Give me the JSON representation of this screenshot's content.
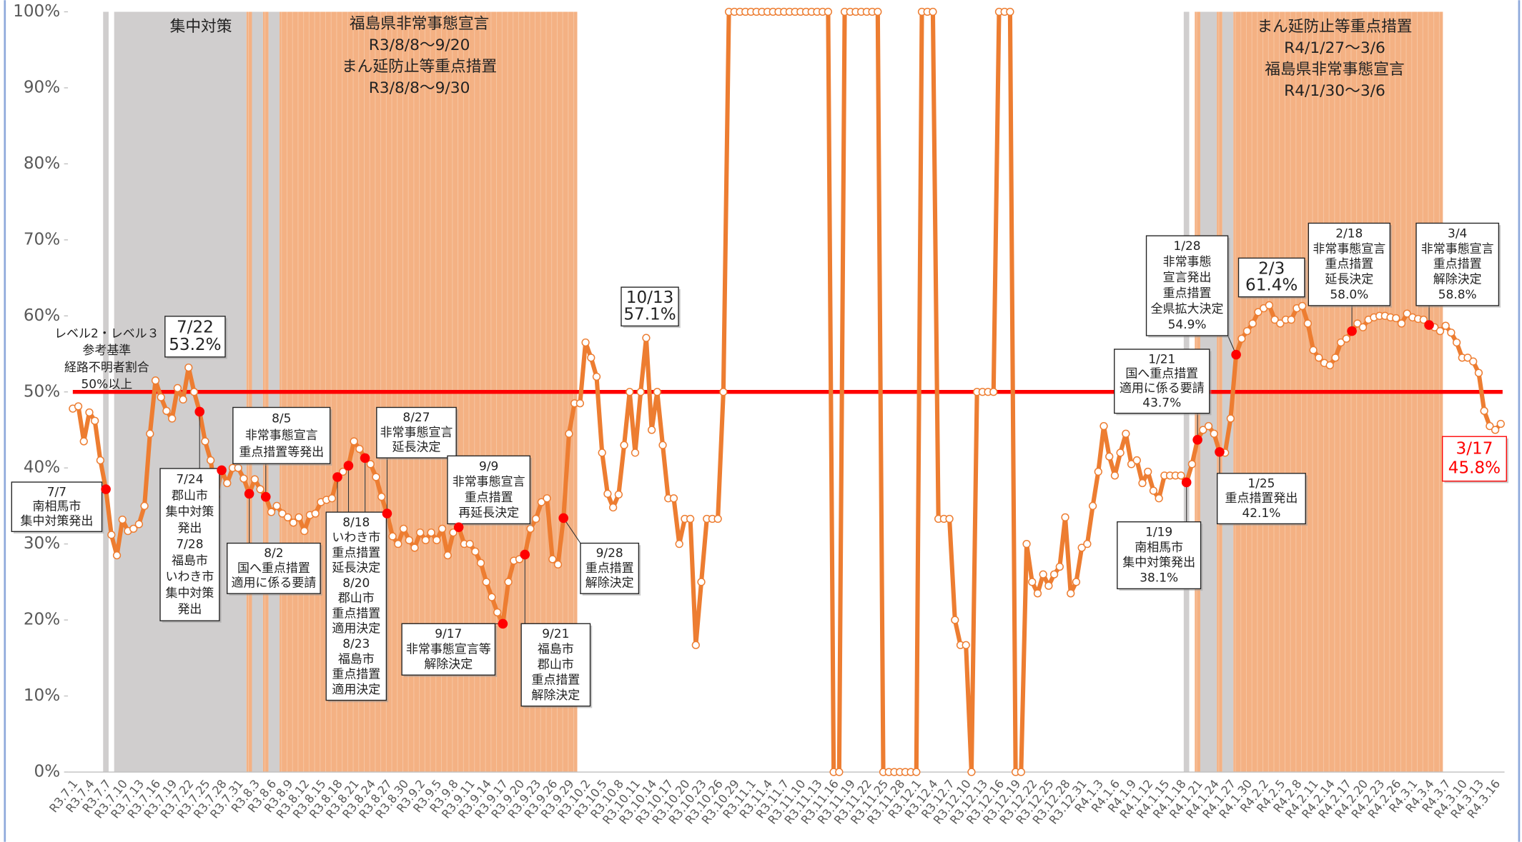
{
  "chart_data": {
    "type": "line",
    "categories": [
      "R3.7.1",
      null,
      null,
      "R3.7.4",
      null,
      null,
      "R3.7.7",
      null,
      null,
      "R3.7.10",
      null,
      null,
      "R3.7.13",
      null,
      null,
      "R3.7.16",
      null,
      null,
      "R3.7.19",
      null,
      null,
      "R3.7.22",
      null,
      null,
      "R3.7.25",
      null,
      null,
      "R3.7.28",
      null,
      null,
      "R3.7.31",
      null,
      null,
      "R3.8.3",
      null,
      null,
      "R3.8.6",
      null,
      null,
      "R3.8.9",
      null,
      null,
      "R3.8.12",
      null,
      null,
      "R3.8.15",
      null,
      null,
      "R3.8.18",
      null,
      null,
      "R3.8.21",
      null,
      null,
      "R3.8.24",
      null,
      null,
      "R3.8.27",
      null,
      null,
      "R3.8.30",
      null,
      null,
      "R3.9.2",
      null,
      null,
      "R3.9.5",
      null,
      null,
      "R3.9.8",
      null,
      null,
      "R3.9.11",
      null,
      null,
      "R3.9.14",
      null,
      null,
      "R3.9.17",
      null,
      null,
      "R3.9.20",
      null,
      null,
      "R3.9.23",
      null,
      null,
      "R3.9.26",
      null,
      null,
      "R3.9.29",
      null,
      null,
      "R3.10.2",
      null,
      null,
      "R3.10.5",
      null,
      null,
      "R3.10.8",
      null,
      null,
      "R3.10.11",
      null,
      null,
      "R3.10.14",
      null,
      null,
      "R3.10.17",
      null,
      null,
      "R3.10.20",
      null,
      null,
      "R3.10.23",
      null,
      null,
      "R3.10.26",
      null,
      null,
      "R3.10.29",
      null,
      null,
      "R3.11.1",
      null,
      null,
      "R3.11.4",
      null,
      null,
      "R3.11.7",
      null,
      null,
      "R3.11.10",
      null,
      null,
      "R3.11.13",
      null,
      null,
      "R3.11.16",
      null,
      null,
      "R3.11.19",
      null,
      null,
      "R3.11.22",
      null,
      null,
      "R3.11.25",
      null,
      null,
      "R3.11.28",
      null,
      null,
      "R3.12.1",
      null,
      null,
      "R3.12.4",
      null,
      null,
      "R3.12.7",
      null,
      null,
      "R3.12.10",
      null,
      null,
      "R3.12.13",
      null,
      null,
      "R3.12.16",
      null,
      null,
      "R3.12.19",
      null,
      null,
      "R3.12.22",
      null,
      null,
      "R3.12.25",
      null,
      null,
      "R3.12.28",
      null,
      null,
      "R3.12.31",
      null,
      null,
      "R4.1.3",
      null,
      null,
      "R4.1.6",
      null,
      null,
      "R4.1.9",
      null,
      null,
      "R4.1.12",
      null,
      null,
      "R4.1.15",
      null,
      null,
      "R4.1.18",
      null,
      null,
      "R4.1.21",
      null,
      null,
      "R4.1.24",
      null,
      null,
      "R4.1.27",
      null,
      null,
      "R4.1.30",
      null,
      null,
      "R4.2.2",
      null,
      null,
      "R4.2.5",
      null,
      null,
      "R4.2.8",
      null,
      null,
      "R4.2.11",
      null,
      null,
      "R4.2.14",
      null,
      null,
      "R4.2.17",
      null,
      null,
      "R4.2.20",
      null,
      null,
      "R4.2.23",
      null,
      null,
      "R4.2.26",
      null,
      null,
      "R4.3.1",
      null,
      null,
      "R4.3.4",
      null,
      null,
      "R4.3.7",
      null,
      null,
      "R4.3.10",
      null,
      null,
      "R4.3.13",
      null,
      null,
      "R4.3.16",
      null
    ],
    "values": [
      47.8,
      48.1,
      43.5,
      47.3,
      46.2,
      41,
      37.2,
      31.2,
      28.5,
      33.2,
      31.7,
      32,
      32.6,
      35,
      44.5,
      51.5,
      49.3,
      47.5,
      46.5,
      50.5,
      49,
      53.2,
      50,
      47.4,
      43.5,
      41,
      36.2,
      39.7,
      38,
      40,
      40,
      38.6,
      36.6,
      38.5,
      37.2,
      36.2,
      34.2,
      35,
      34,
      33.5,
      32.8,
      33.5,
      31.7,
      33.8,
      34,
      35.5,
      35.8,
      36,
      38.8,
      39.5,
      40.3,
      43.5,
      42.5,
      41.3,
      40.5,
      38.8,
      36.2,
      34,
      31,
      30,
      32,
      30.5,
      29.5,
      31.5,
      30.5,
      31.5,
      30.5,
      32,
      28.5,
      31.5,
      32.2,
      30,
      30,
      29,
      27.5,
      25,
      23,
      21,
      19.5,
      25,
      27.8,
      28,
      28.6,
      32,
      33.3,
      35.5,
      36,
      28,
      27.3,
      33.4,
      44.5,
      48.5,
      48.5,
      56.5,
      54.5,
      52,
      42,
      36.6,
      34.8,
      36.5,
      43,
      50,
      42,
      50,
      57.1,
      45,
      50,
      43,
      36,
      36,
      30,
      33.3,
      33.3,
      16.7,
      25,
      33.3,
      33.3,
      33.3,
      50,
      100,
      100,
      100,
      100,
      100,
      100,
      100,
      100,
      100,
      100,
      100,
      100,
      100,
      100,
      100,
      100,
      100,
      100,
      100,
      0,
      0,
      100,
      100,
      100,
      100,
      100,
      100,
      100,
      0,
      0,
      0,
      0,
      0,
      0,
      0,
      100,
      100,
      100,
      33.3,
      33.3,
      33.3,
      20,
      16.7,
      16.7,
      0,
      50,
      50,
      50,
      50,
      100,
      100,
      100,
      0,
      0,
      30,
      25,
      23.5,
      26,
      24.5,
      26,
      27,
      33.5,
      23.5,
      25,
      29.5,
      30,
      35,
      39.5,
      45.5,
      41.5,
      39,
      42,
      44.5,
      40.5,
      41,
      38,
      39.5,
      37,
      36,
      39,
      39,
      39,
      39,
      38.1,
      40.5,
      43.7,
      45,
      45.5,
      44.5,
      42.1,
      42,
      46.5,
      54.9,
      57,
      58,
      59,
      60.5,
      61,
      61.4,
      59.5,
      59,
      59.5,
      59.5,
      61,
      61.3,
      59,
      55.5,
      54.5,
      53.8,
      53.5,
      54.5,
      56.5,
      57,
      58,
      59,
      58.5,
      59.5,
      59.8,
      60,
      60,
      59.8,
      59.7,
      59,
      60.3,
      59.8,
      59.6,
      59.5,
      58.8,
      58.5,
      58,
      58.7,
      57.8,
      56.5,
      54.5,
      54.5,
      54,
      52.5,
      47.5,
      45.5,
      45,
      45.8
    ],
    "color": "#ed7d31",
    "highlight_color": "#ff0000",
    "ylim": [
      0,
      100
    ],
    "yticks": [
      {
        "value": 0,
        "label": "0%"
      },
      {
        "value": 10,
        "label": "10%"
      },
      {
        "value": 20,
        "label": "20%"
      },
      {
        "value": 30,
        "label": "30%"
      },
      {
        "value": 40,
        "label": "40%"
      },
      {
        "value": 50,
        "label": "50%"
      },
      {
        "value": 60,
        "label": "60%"
      },
      {
        "value": 70,
        "label": "70%"
      },
      {
        "value": 80,
        "label": "80%"
      },
      {
        "value": 90,
        "label": "90%"
      },
      {
        "value": 100,
        "label": "100%"
      }
    ],
    "grid": false,
    "threshold": 50,
    "threshold_color": "#ff0000",
    "threshold_label": [
      "レベル2・レベル３",
      "参考基準",
      "経路不明者割合",
      "50%以上"
    ],
    "period_labels": [
      {
        "lines": [
          "集中対策"
        ]
      },
      {
        "lines": [
          "福島県非常事態宣言",
          "R3/8/8～9/20",
          "まん延防止等重点措置",
          "R3/8/8～9/30"
        ]
      },
      {
        "lines": [
          "まん延防止等重点措置",
          "R4/1/27～3/6",
          "福島県非常事態宣言",
          "R4/1/30～3/6"
        ]
      }
    ],
    "annotations": [
      {
        "lines": [
          "7/7",
          "南相馬市",
          "集中対策発出"
        ]
      },
      {
        "lines": [
          "7/22",
          "53.2%"
        ]
      },
      {
        "lines": [
          "7/24",
          "郡山市",
          "集中対策",
          "発出",
          "7/28",
          "福島市",
          "いわき市",
          "集中対策",
          "発出"
        ]
      },
      {
        "lines": [
          "8/2",
          "国へ重点措置",
          "適用に係る要請"
        ]
      },
      {
        "lines": [
          "8/5",
          "非常事態宣言",
          "重点措置等発出"
        ]
      },
      {
        "lines": [
          "8/18",
          "いわき市",
          "重点措置",
          "延長決定",
          "8/20",
          "郡山市",
          "重点措置",
          "適用決定",
          "8/23",
          "福島市",
          "重点措置",
          "適用決定"
        ]
      },
      {
        "lines": [
          "8/27",
          "非常事態宣言",
          "延長決定"
        ]
      },
      {
        "lines": [
          "9/9",
          "非常事態宣言",
          "重点措置",
          "再延長決定"
        ]
      },
      {
        "lines": [
          "9/17",
          "非常事態宣言等",
          "解除決定"
        ]
      },
      {
        "lines": [
          "9/21",
          "福島市",
          "郡山市",
          "重点措置",
          "解除決定"
        ]
      },
      {
        "lines": [
          "9/28",
          "重点措置",
          "解除決定"
        ]
      },
      {
        "lines": [
          "10/13",
          "57.1%"
        ]
      },
      {
        "lines": [
          "1/28",
          "非常事態",
          "宣言発出",
          "重点措置",
          "全県拡大決定",
          "54.9%"
        ]
      },
      {
        "lines": [
          "2/3",
          "61.4%"
        ]
      },
      {
        "lines": [
          "1/21",
          "国へ重点措置",
          "適用に係る要請",
          "43.7%"
        ]
      },
      {
        "lines": [
          "1/25",
          "重点措置発出",
          "42.1%"
        ]
      },
      {
        "lines": [
          "1/19",
          "南相馬市",
          "集中対策発出",
          "38.1%"
        ]
      },
      {
        "lines": [
          "2/18",
          "非常事態宣言",
          "重点措置",
          "延長決定",
          "58.0%"
        ]
      },
      {
        "lines": [
          "3/4",
          "非常事態宣言",
          "重点措置",
          "解除決定",
          "58.8%"
        ]
      },
      {
        "lines": [
          "3/17",
          "45.8%"
        ]
      }
    ]
  }
}
